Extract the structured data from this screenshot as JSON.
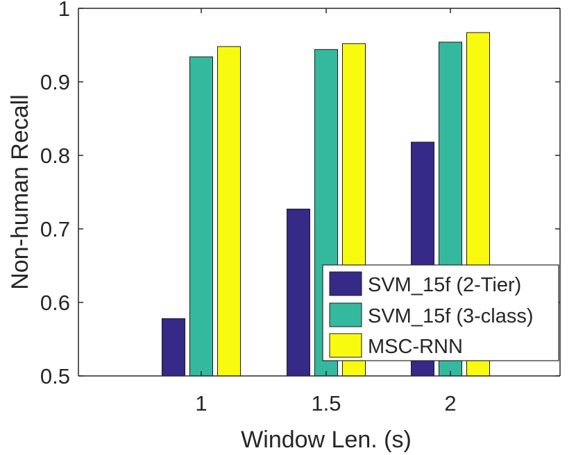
{
  "chart_data": {
    "type": "bar",
    "title": "",
    "xlabel": "Window Len. (s)",
    "ylabel": "Non-human Recall",
    "categories": [
      "1",
      "1.5",
      "2"
    ],
    "ylim": [
      0.5,
      1.0
    ],
    "yticks": [
      0.5,
      0.6,
      0.7,
      0.8,
      0.9,
      1.0
    ],
    "ytick_labels": [
      "0.5",
      "0.6",
      "0.7",
      "0.8",
      "0.9",
      "1"
    ],
    "series": [
      {
        "name": "SVM_15f (2-Tier)",
        "color": "#352A87",
        "values": [
          0.578,
          0.727,
          0.818
        ]
      },
      {
        "name": "SVM_15f (3-class)",
        "color": "#35B99E",
        "values": [
          0.934,
          0.944,
          0.954
        ]
      },
      {
        "name": "MSC-RNN",
        "color": "#F9FB0E",
        "values": [
          0.948,
          0.952,
          0.967
        ]
      }
    ],
    "legend_position": "bottom-right",
    "grid": false
  }
}
